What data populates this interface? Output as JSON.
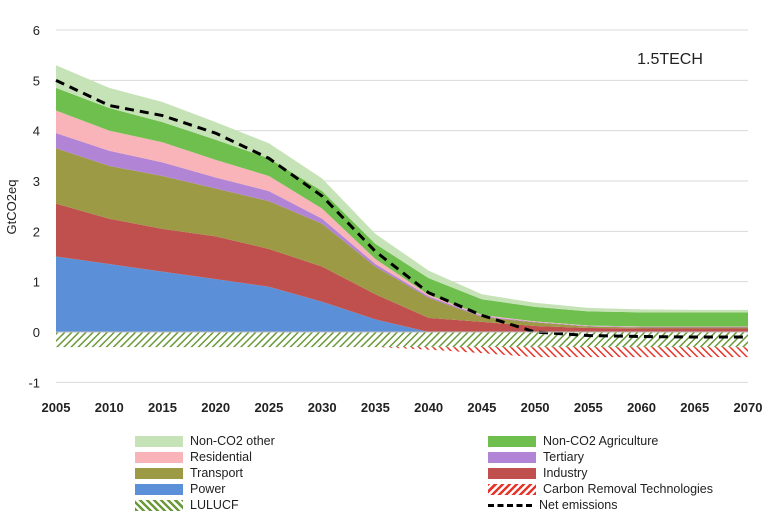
{
  "chart_data": {
    "type": "area",
    "title": "1.5TECH",
    "ylabel": "GtCO2eq",
    "xlabel": "",
    "ylim": [
      -1,
      6
    ],
    "yticks": [
      "-1",
      "0",
      "1",
      "2",
      "3",
      "4",
      "5",
      "6"
    ],
    "xticks": [
      "2005",
      "2010",
      "2015",
      "2020",
      "2025",
      "2030",
      "2035",
      "2040",
      "2045",
      "2050",
      "2055",
      "2060",
      "2065",
      "2070"
    ],
    "x": [
      2005,
      2010,
      2015,
      2020,
      2025,
      2030,
      2035,
      2040,
      2045,
      2050,
      2055,
      2060,
      2065,
      2070
    ],
    "grid": true,
    "series": [
      {
        "name": "Power",
        "color": "#5b8fd8",
        "values": [
          1.5,
          1.35,
          1.2,
          1.05,
          0.9,
          0.6,
          0.25,
          0.0,
          0.0,
          0.0,
          0.0,
          0.0,
          0.0,
          0.0
        ]
      },
      {
        "name": "Industry",
        "color": "#c0504d",
        "values": [
          1.05,
          0.9,
          0.85,
          0.85,
          0.75,
          0.7,
          0.5,
          0.28,
          0.2,
          0.12,
          0.08,
          0.07,
          0.07,
          0.07
        ]
      },
      {
        "name": "Transport",
        "color": "#9d9a46",
        "values": [
          1.1,
          1.05,
          1.05,
          0.95,
          0.95,
          0.85,
          0.55,
          0.4,
          0.1,
          0.07,
          0.03,
          0.02,
          0.02,
          0.02
        ]
      },
      {
        "name": "Tertiary",
        "color": "#b284d6",
        "values": [
          0.3,
          0.3,
          0.27,
          0.22,
          0.2,
          0.1,
          0.05,
          0.03,
          0.02,
          0.01,
          0.01,
          0.01,
          0.01,
          0.01
        ]
      },
      {
        "name": "Residential",
        "color": "#f8b4b8",
        "values": [
          0.45,
          0.4,
          0.4,
          0.35,
          0.3,
          0.2,
          0.1,
          0.03,
          0.02,
          0.01,
          0.01,
          0.01,
          0.01,
          0.01
        ]
      },
      {
        "name": "Non-CO2 Agriculture",
        "color": "#6fbf4f",
        "values": [
          0.45,
          0.45,
          0.4,
          0.4,
          0.35,
          0.35,
          0.3,
          0.33,
          0.31,
          0.29,
          0.28,
          0.28,
          0.28,
          0.28
        ]
      },
      {
        "name": "Non-CO2 other",
        "color": "#c6e3b8",
        "values": [
          0.45,
          0.4,
          0.4,
          0.35,
          0.3,
          0.25,
          0.2,
          0.15,
          0.1,
          0.08,
          0.07,
          0.06,
          0.05,
          0.05
        ]
      }
    ],
    "negative_series": [
      {
        "name": "LULUCF",
        "color": "#6a9a3a",
        "pattern": "hatch",
        "values": [
          -0.3,
          -0.3,
          -0.3,
          -0.3,
          -0.3,
          -0.3,
          -0.3,
          -0.3,
          -0.3,
          -0.3,
          -0.3,
          -0.3,
          -0.3,
          -0.3
        ]
      },
      {
        "name": "Carbon Removal Technologies",
        "color": "#e8352b",
        "pattern": "hatch",
        "values": [
          0.0,
          0.0,
          0.0,
          0.0,
          0.0,
          0.0,
          0.0,
          -0.05,
          -0.12,
          -0.2,
          -0.2,
          -0.2,
          -0.2,
          -0.2
        ]
      }
    ],
    "line": {
      "name": "Net emissions",
      "color": "#000000",
      "style": "dashed",
      "values": [
        5.0,
        4.5,
        4.3,
        3.95,
        3.45,
        2.7,
        1.6,
        0.78,
        0.33,
        0.0,
        -0.07,
        -0.09,
        -0.1,
        -0.1
      ]
    },
    "legend": {
      "placement": "bottom",
      "entries": [
        "Non-CO2 other",
        "Non-CO2 Agriculture",
        "Residential",
        "Tertiary",
        "Transport",
        "Industry",
        "Power",
        "Carbon Removal Technologies",
        "LULUCF",
        "Net emissions"
      ]
    }
  }
}
